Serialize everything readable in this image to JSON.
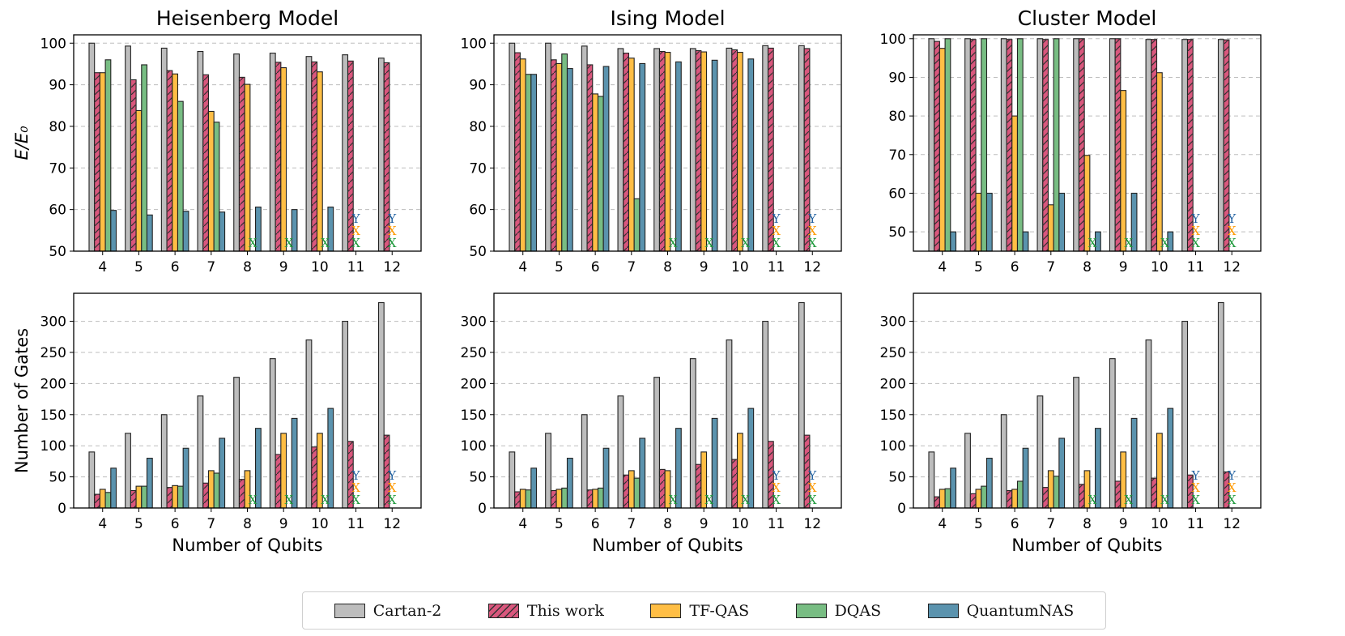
{
  "chart_data": {
    "type": "bar",
    "categories": [
      "4",
      "5",
      "6",
      "7",
      "8",
      "9",
      "10",
      "11",
      "12"
    ],
    "legend": [
      {
        "name": "Cartan-2",
        "color": "#bdbdbd",
        "hatch": false
      },
      {
        "name": "This work",
        "color": "#d9577d",
        "hatch": true
      },
      {
        "name": "TF-QAS",
        "color": "#ffbe45",
        "hatch": false
      },
      {
        "name": "DQAS",
        "color": "#78bd83",
        "hatch": false
      },
      {
        "name": "QuantumNAS",
        "color": "#5b93ae",
        "hatch": false
      }
    ],
    "marker_colors": {
      "Y": "#1f5f9f",
      "X_orange": "#ff9900",
      "X_green": "#1e9a3c"
    },
    "charts": [
      {
        "title": "Heisenberg Model",
        "ylabel": "E/E₀",
        "xlabel": "",
        "ylim": [
          50,
          102
        ],
        "yticks": [
          50,
          60,
          70,
          80,
          90,
          100
        ],
        "series": [
          {
            "name": "Cartan-2",
            "values": [
              100,
              99.3,
              98.8,
              98,
              97.4,
              97.6,
              96.8,
              97.2,
              96.4
            ]
          },
          {
            "name": "This work",
            "values": [
              92.9,
              91.2,
              93.4,
              92.4,
              91.8,
              95.4,
              95.5,
              95.7,
              95.3
            ]
          },
          {
            "name": "TF-QAS",
            "values": [
              92.9,
              83.8,
              92.6,
              83.6,
              90.1,
              94.1,
              93.1,
              null,
              null
            ]
          },
          {
            "name": "DQAS",
            "values": [
              96,
              94.8,
              86,
              81,
              null,
              null,
              null,
              null,
              null
            ]
          },
          {
            "name": "QuantumNAS",
            "values": [
              59.8,
              58.7,
              59.6,
              59.4,
              60.6,
              60,
              60.6,
              null,
              null
            ]
          }
        ],
        "markers": [
          {
            "category": "8",
            "series": "DQAS",
            "text": "X"
          },
          {
            "category": "9",
            "series": "DQAS",
            "text": "X"
          },
          {
            "category": "10",
            "series": "DQAS",
            "text": "X"
          },
          {
            "category": "11",
            "series": "QuantumNAS",
            "text": "Y"
          },
          {
            "category": "11",
            "series": "TF-QAS",
            "text": "X"
          },
          {
            "category": "11",
            "series": "DQAS",
            "text": "X"
          },
          {
            "category": "12",
            "series": "QuantumNAS",
            "text": "Y"
          },
          {
            "category": "12",
            "series": "TF-QAS",
            "text": "X"
          },
          {
            "category": "12",
            "series": "DQAS",
            "text": "X"
          }
        ]
      },
      {
        "title": "Ising Model",
        "ylabel": "",
        "xlabel": "",
        "ylim": [
          50,
          102
        ],
        "yticks": [
          50,
          60,
          70,
          80,
          90,
          100
        ],
        "series": [
          {
            "name": "Cartan-2",
            "values": [
              100,
              100,
              99.3,
              98.7,
              98.7,
              98.7,
              98.8,
              99.4,
              99.4
            ]
          },
          {
            "name": "This work",
            "values": [
              97.7,
              96,
              94.8,
              97.6,
              98,
              98.2,
              98.4,
              98.8,
              98.7
            ]
          },
          {
            "name": "TF-QAS",
            "values": [
              96.2,
              95.1,
              87.8,
              96.4,
              97.8,
              97.9,
              97.8,
              null,
              null
            ]
          },
          {
            "name": "DQAS",
            "values": [
              92.5,
              97.4,
              87.2,
              62.6,
              null,
              null,
              null,
              null,
              null
            ]
          },
          {
            "name": "QuantumNAS",
            "values": [
              92.5,
              93.9,
              94.4,
              95.1,
              95.5,
              95.9,
              96.2,
              null,
              null
            ]
          }
        ],
        "markers": [
          {
            "category": "8",
            "series": "DQAS",
            "text": "X"
          },
          {
            "category": "9",
            "series": "DQAS",
            "text": "X"
          },
          {
            "category": "10",
            "series": "DQAS",
            "text": "X"
          },
          {
            "category": "11",
            "series": "QuantumNAS",
            "text": "Y"
          },
          {
            "category": "11",
            "series": "TF-QAS",
            "text": "X"
          },
          {
            "category": "11",
            "series": "DQAS",
            "text": "X"
          },
          {
            "category": "12",
            "series": "QuantumNAS",
            "text": "Y"
          },
          {
            "category": "12",
            "series": "TF-QAS",
            "text": "X"
          },
          {
            "category": "12",
            "series": "DQAS",
            "text": "X"
          }
        ]
      },
      {
        "title": "Cluster Model",
        "ylabel": "",
        "xlabel": "",
        "ylim": [
          45,
          101
        ],
        "yticks": [
          50,
          60,
          70,
          80,
          90,
          100
        ],
        "series": [
          {
            "name": "Cartan-2",
            "values": [
              100,
              100,
              100,
              100,
              100,
              100,
              99.8,
              99.8,
              99.8
            ]
          },
          {
            "name": "This work",
            "values": [
              99.3,
              99.8,
              99.8,
              99.8,
              100,
              100,
              99.8,
              99.8,
              99.7
            ]
          },
          {
            "name": "TF-QAS",
            "values": [
              97.5,
              60,
              80,
              57,
              69.8,
              86.6,
              91.2,
              null,
              null
            ]
          },
          {
            "name": "DQAS",
            "values": [
              100,
              100,
              100,
              100,
              null,
              null,
              null,
              null,
              null
            ]
          },
          {
            "name": "QuantumNAS",
            "values": [
              50,
              60,
              50,
              60,
              50,
              60,
              50,
              null,
              null
            ]
          }
        ],
        "markers": [
          {
            "category": "8",
            "series": "DQAS",
            "text": "X"
          },
          {
            "category": "9",
            "series": "DQAS",
            "text": "X"
          },
          {
            "category": "10",
            "series": "DQAS",
            "text": "X"
          },
          {
            "category": "11",
            "series": "QuantumNAS",
            "text": "Y"
          },
          {
            "category": "11",
            "series": "TF-QAS",
            "text": "X"
          },
          {
            "category": "11",
            "series": "DQAS",
            "text": "X"
          },
          {
            "category": "12",
            "series": "QuantumNAS",
            "text": "Y"
          },
          {
            "category": "12",
            "series": "TF-QAS",
            "text": "X"
          },
          {
            "category": "12",
            "series": "DQAS",
            "text": "X"
          }
        ]
      },
      {
        "title": "",
        "ylabel": "Number of Gates",
        "xlabel": "Number of Qubits",
        "ylim": [
          0,
          345
        ],
        "yticks": [
          0,
          50,
          100,
          150,
          200,
          250,
          300
        ],
        "series": [
          {
            "name": "Cartan-2",
            "values": [
              90,
              120,
              150,
              180,
              210,
              240,
              270,
              300,
              330
            ]
          },
          {
            "name": "This work",
            "values": [
              22,
              28,
              33,
              40,
              46,
              86,
              98,
              107,
              117
            ]
          },
          {
            "name": "TF-QAS",
            "values": [
              30,
              35,
              36,
              60,
              60,
              120,
              120,
              null,
              null
            ]
          },
          {
            "name": "DQAS",
            "values": [
              25,
              35,
              35,
              56,
              null,
              null,
              null,
              null,
              null
            ]
          },
          {
            "name": "QuantumNAS",
            "values": [
              64,
              80,
              96,
              112,
              128,
              144,
              160,
              null,
              null
            ]
          }
        ],
        "markers": [
          {
            "category": "8",
            "series": "DQAS",
            "text": "X"
          },
          {
            "category": "9",
            "series": "DQAS",
            "text": "X"
          },
          {
            "category": "10",
            "series": "DQAS",
            "text": "X"
          },
          {
            "category": "11",
            "series": "QuantumNAS",
            "text": "Y"
          },
          {
            "category": "11",
            "series": "TF-QAS",
            "text": "X"
          },
          {
            "category": "11",
            "series": "DQAS",
            "text": "X"
          },
          {
            "category": "12",
            "series": "QuantumNAS",
            "text": "Y"
          },
          {
            "category": "12",
            "series": "TF-QAS",
            "text": "X"
          },
          {
            "category": "12",
            "series": "DQAS",
            "text": "X"
          }
        ]
      },
      {
        "title": "",
        "ylabel": "",
        "xlabel": "Number of Qubits",
        "ylim": [
          0,
          345
        ],
        "yticks": [
          0,
          50,
          100,
          150,
          200,
          250,
          300
        ],
        "series": [
          {
            "name": "Cartan-2",
            "values": [
              90,
              120,
              150,
              180,
              210,
              240,
              270,
              300,
              330
            ]
          },
          {
            "name": "This work",
            "values": [
              26,
              28,
              29,
              53,
              62,
              70,
              78,
              107,
              117
            ]
          },
          {
            "name": "TF-QAS",
            "values": [
              30,
              30,
              30,
              60,
              60,
              90,
              120,
              null,
              null
            ]
          },
          {
            "name": "DQAS",
            "values": [
              29,
              32,
              32,
              48,
              null,
              null,
              null,
              null,
              null
            ]
          },
          {
            "name": "QuantumNAS",
            "values": [
              64,
              80,
              96,
              112,
              128,
              144,
              160,
              null,
              null
            ]
          }
        ],
        "markers": [
          {
            "category": "8",
            "series": "DQAS",
            "text": "X"
          },
          {
            "category": "9",
            "series": "DQAS",
            "text": "X"
          },
          {
            "category": "10",
            "series": "DQAS",
            "text": "X"
          },
          {
            "category": "11",
            "series": "QuantumNAS",
            "text": "Y"
          },
          {
            "category": "11",
            "series": "TF-QAS",
            "text": "X"
          },
          {
            "category": "11",
            "series": "DQAS",
            "text": "X"
          },
          {
            "category": "12",
            "series": "QuantumNAS",
            "text": "Y"
          },
          {
            "category": "12",
            "series": "TF-QAS",
            "text": "X"
          },
          {
            "category": "12",
            "series": "DQAS",
            "text": "X"
          }
        ]
      },
      {
        "title": "",
        "ylabel": "",
        "xlabel": "Number of Qubits",
        "ylim": [
          0,
          345
        ],
        "yticks": [
          0,
          50,
          100,
          150,
          200,
          250,
          300
        ],
        "series": [
          {
            "name": "Cartan-2",
            "values": [
              90,
              120,
              150,
              180,
              210,
              240,
              270,
              300,
              330
            ]
          },
          {
            "name": "This work",
            "values": [
              18,
              23,
              28,
              33,
              38,
              43,
              48,
              53,
              58
            ]
          },
          {
            "name": "TF-QAS",
            "values": [
              30,
              30,
              30,
              60,
              60,
              90,
              120,
              null,
              null
            ]
          },
          {
            "name": "DQAS",
            "values": [
              31,
              35,
              43,
              51,
              null,
              null,
              null,
              null,
              null
            ]
          },
          {
            "name": "QuantumNAS",
            "values": [
              64,
              80,
              96,
              112,
              128,
              144,
              160,
              null,
              null
            ]
          }
        ],
        "markers": [
          {
            "category": "8",
            "series": "DQAS",
            "text": "X"
          },
          {
            "category": "9",
            "series": "DQAS",
            "text": "X"
          },
          {
            "category": "10",
            "series": "DQAS",
            "text": "X"
          },
          {
            "category": "11",
            "series": "QuantumNAS",
            "text": "Y"
          },
          {
            "category": "11",
            "series": "TF-QAS",
            "text": "X"
          },
          {
            "category": "11",
            "series": "DQAS",
            "text": "X"
          },
          {
            "category": "12",
            "series": "QuantumNAS",
            "text": "Y"
          },
          {
            "category": "12",
            "series": "TF-QAS",
            "text": "X"
          },
          {
            "category": "12",
            "series": "DQAS",
            "text": "X"
          }
        ]
      }
    ]
  }
}
